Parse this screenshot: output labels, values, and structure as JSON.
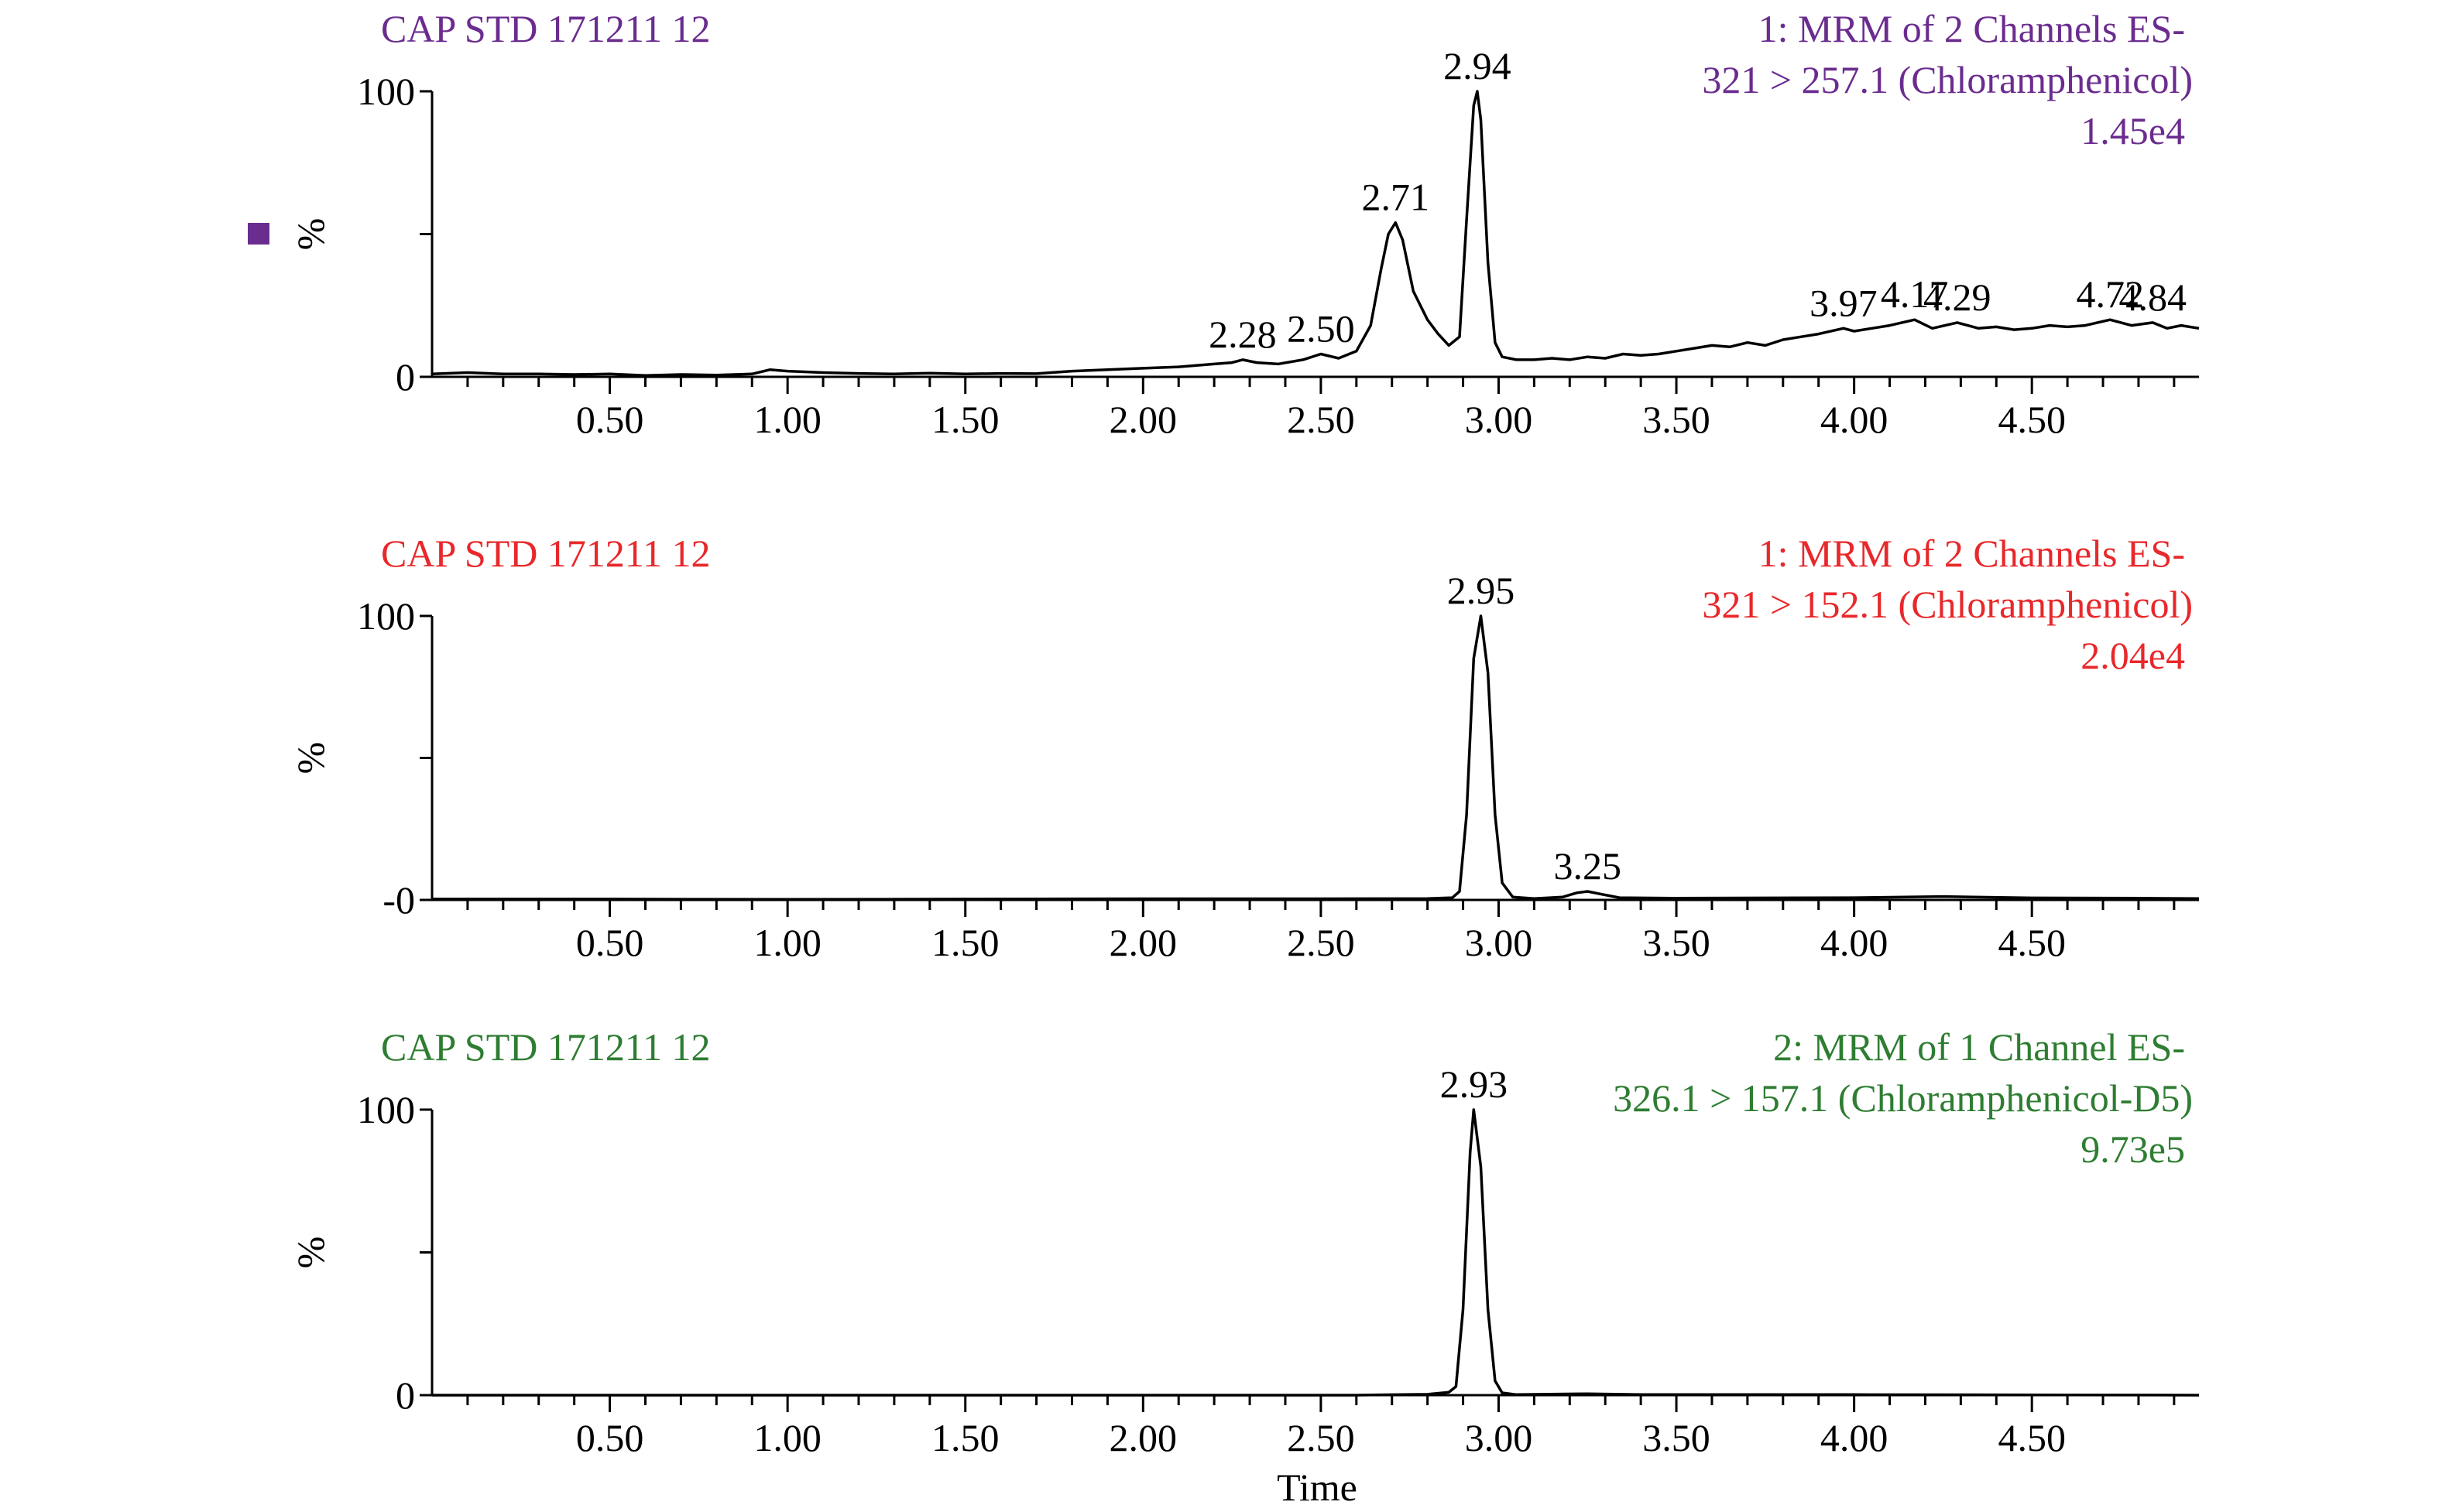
{
  "chart_data": [
    {
      "type": "line",
      "sample_name": "CAP STD 171211 12",
      "channel_line1": "1: MRM of 2 Channels ES-",
      "channel_line2": "321 > 257.1 (Chloramphenicol)",
      "intensity": "1.45e4",
      "color": "#6b2c8f",
      "ylabel": "%",
      "ylim": [
        0,
        100
      ],
      "y_ticks": [
        "0",
        "100"
      ],
      "xlim": [
        0,
        4.97
      ],
      "x_ticks": [
        "0.50",
        "1.00",
        "1.50",
        "2.00",
        "2.50",
        "3.00",
        "3.50",
        "4.00",
        "4.50"
      ],
      "x_tick_values": [
        0.5,
        1.0,
        1.5,
        2.0,
        2.5,
        3.0,
        3.5,
        4.0,
        4.5
      ],
      "peak_labels": [
        {
          "x": 2.28,
          "y": 6,
          "label": "2.28"
        },
        {
          "x": 2.5,
          "y": 8,
          "label": "2.50"
        },
        {
          "x": 2.71,
          "y": 54,
          "label": "2.71"
        },
        {
          "x": 2.94,
          "y": 100,
          "label": "2.94"
        },
        {
          "x": 3.97,
          "y": 17,
          "label": "3.97"
        },
        {
          "x": 4.17,
          "y": 20,
          "label": "4.17"
        },
        {
          "x": 4.29,
          "y": 19,
          "label": "4.29"
        },
        {
          "x": 4.72,
          "y": 20,
          "label": "4.72"
        },
        {
          "x": 4.84,
          "y": 19,
          "label": "4.84"
        }
      ],
      "marker_square": true,
      "trace": [
        [
          0.0,
          1
        ],
        [
          0.1,
          1.5
        ],
        [
          0.2,
          1
        ],
        [
          0.3,
          1
        ],
        [
          0.4,
          0.8
        ],
        [
          0.5,
          1
        ],
        [
          0.6,
          0.5
        ],
        [
          0.7,
          0.8
        ],
        [
          0.8,
          0.6
        ],
        [
          0.9,
          1
        ],
        [
          0.95,
          2.5
        ],
        [
          1.0,
          2
        ],
        [
          1.1,
          1.5
        ],
        [
          1.2,
          1.2
        ],
        [
          1.3,
          1
        ],
        [
          1.4,
          1.3
        ],
        [
          1.5,
          1
        ],
        [
          1.6,
          1.2
        ],
        [
          1.7,
          1.1
        ],
        [
          1.8,
          2
        ],
        [
          1.9,
          2.5
        ],
        [
          2.0,
          3
        ],
        [
          2.1,
          3.5
        ],
        [
          2.2,
          4.5
        ],
        [
          2.25,
          5
        ],
        [
          2.28,
          6
        ],
        [
          2.32,
          5
        ],
        [
          2.38,
          4.5
        ],
        [
          2.45,
          6
        ],
        [
          2.5,
          8
        ],
        [
          2.55,
          6.5
        ],
        [
          2.6,
          9
        ],
        [
          2.64,
          18
        ],
        [
          2.67,
          38
        ],
        [
          2.69,
          50
        ],
        [
          2.71,
          54
        ],
        [
          2.73,
          48
        ],
        [
          2.76,
          30
        ],
        [
          2.8,
          20
        ],
        [
          2.83,
          15
        ],
        [
          2.86,
          11
        ],
        [
          2.89,
          14
        ],
        [
          2.91,
          55
        ],
        [
          2.93,
          95
        ],
        [
          2.94,
          100
        ],
        [
          2.95,
          90
        ],
        [
          2.97,
          40
        ],
        [
          2.99,
          12
        ],
        [
          3.01,
          7
        ],
        [
          3.05,
          6
        ],
        [
          3.1,
          6
        ],
        [
          3.15,
          6.5
        ],
        [
          3.2,
          6
        ],
        [
          3.25,
          7
        ],
        [
          3.3,
          6.5
        ],
        [
          3.35,
          8
        ],
        [
          3.4,
          7.5
        ],
        [
          3.45,
          8
        ],
        [
          3.5,
          9
        ],
        [
          3.55,
          10
        ],
        [
          3.6,
          11
        ],
        [
          3.65,
          10.5
        ],
        [
          3.7,
          12
        ],
        [
          3.75,
          11
        ],
        [
          3.8,
          13
        ],
        [
          3.85,
          14
        ],
        [
          3.9,
          15
        ],
        [
          3.97,
          17
        ],
        [
          4.0,
          16
        ],
        [
          4.05,
          17
        ],
        [
          4.1,
          18
        ],
        [
          4.17,
          20
        ],
        [
          4.22,
          17
        ],
        [
          4.29,
          19
        ],
        [
          4.35,
          17
        ],
        [
          4.4,
          17.5
        ],
        [
          4.45,
          16.5
        ],
        [
          4.5,
          17
        ],
        [
          4.55,
          18
        ],
        [
          4.6,
          17.5
        ],
        [
          4.65,
          18
        ],
        [
          4.72,
          20
        ],
        [
          4.78,
          18
        ],
        [
          4.84,
          19
        ],
        [
          4.88,
          17
        ],
        [
          4.92,
          18
        ],
        [
          4.97,
          17
        ]
      ]
    },
    {
      "type": "line",
      "sample_name": "CAP STD 171211 12",
      "channel_line1": "1: MRM of 2 Channels ES-",
      "channel_line2": "321 > 152.1 (Chloramphenicol)",
      "intensity": "2.04e4",
      "color": "#e8282b",
      "ylabel": "%",
      "ylim": [
        0,
        100
      ],
      "y_ticks": [
        "-0",
        "100"
      ],
      "xlim": [
        0,
        4.97
      ],
      "x_ticks": [
        "0.50",
        "1.00",
        "1.50",
        "2.00",
        "2.50",
        "3.00",
        "3.50",
        "4.00",
        "4.50"
      ],
      "x_tick_values": [
        0.5,
        1.0,
        1.5,
        2.0,
        2.5,
        3.0,
        3.5,
        4.0,
        4.5
      ],
      "peak_labels": [
        {
          "x": 2.95,
          "y": 100,
          "label": "2.95"
        },
        {
          "x": 3.25,
          "y": 3,
          "label": "3.25"
        }
      ],
      "marker_square": false,
      "trace": [
        [
          0.0,
          0.3
        ],
        [
          0.5,
          0.3
        ],
        [
          1.0,
          0.2
        ],
        [
          1.5,
          0.3
        ],
        [
          2.0,
          0.4
        ],
        [
          2.5,
          0.4
        ],
        [
          2.8,
          0.5
        ],
        [
          2.87,
          0.8
        ],
        [
          2.89,
          3
        ],
        [
          2.91,
          30
        ],
        [
          2.93,
          85
        ],
        [
          2.95,
          100
        ],
        [
          2.97,
          80
        ],
        [
          2.99,
          30
        ],
        [
          3.01,
          6
        ],
        [
          3.04,
          1
        ],
        [
          3.1,
          0.5
        ],
        [
          3.18,
          1
        ],
        [
          3.22,
          2.5
        ],
        [
          3.25,
          3
        ],
        [
          3.29,
          2
        ],
        [
          3.34,
          0.8
        ],
        [
          3.5,
          0.6
        ],
        [
          4.0,
          0.8
        ],
        [
          4.25,
          1.2
        ],
        [
          4.5,
          0.7
        ],
        [
          4.8,
          0.6
        ],
        [
          4.97,
          0.5
        ]
      ]
    },
    {
      "type": "line",
      "sample_name": "CAP STD 171211 12",
      "channel_line1": "2: MRM of 1 Channel ES-",
      "channel_line2": "326.1 > 157.1 (Chloramphenicol-D5)",
      "intensity": "9.73e5",
      "color": "#2e7d32",
      "ylabel": "%",
      "ylim": [
        0,
        100
      ],
      "y_ticks": [
        "0",
        "100"
      ],
      "xlim": [
        0,
        4.97
      ],
      "x_ticks": [
        "0.50",
        "1.00",
        "1.50",
        "2.00",
        "2.50",
        "3.00",
        "3.50",
        "4.00",
        "4.50"
      ],
      "x_tick_values": [
        0.5,
        1.0,
        1.5,
        2.0,
        2.5,
        3.0,
        3.5,
        4.0,
        4.5
      ],
      "peak_labels": [
        {
          "x": 2.93,
          "y": 100,
          "label": "2.93"
        }
      ],
      "marker_square": false,
      "xlabel": "Time",
      "trace": [
        [
          0.0,
          0
        ],
        [
          2.6,
          0
        ],
        [
          2.8,
          0.3
        ],
        [
          2.86,
          1
        ],
        [
          2.88,
          3
        ],
        [
          2.9,
          30
        ],
        [
          2.92,
          85
        ],
        [
          2.93,
          100
        ],
        [
          2.95,
          80
        ],
        [
          2.97,
          30
        ],
        [
          2.99,
          5
        ],
        [
          3.01,
          0.8
        ],
        [
          3.05,
          0.2
        ],
        [
          3.25,
          0.5
        ],
        [
          3.4,
          0.2
        ],
        [
          4.0,
          0.2
        ],
        [
          4.97,
          0
        ]
      ]
    }
  ]
}
